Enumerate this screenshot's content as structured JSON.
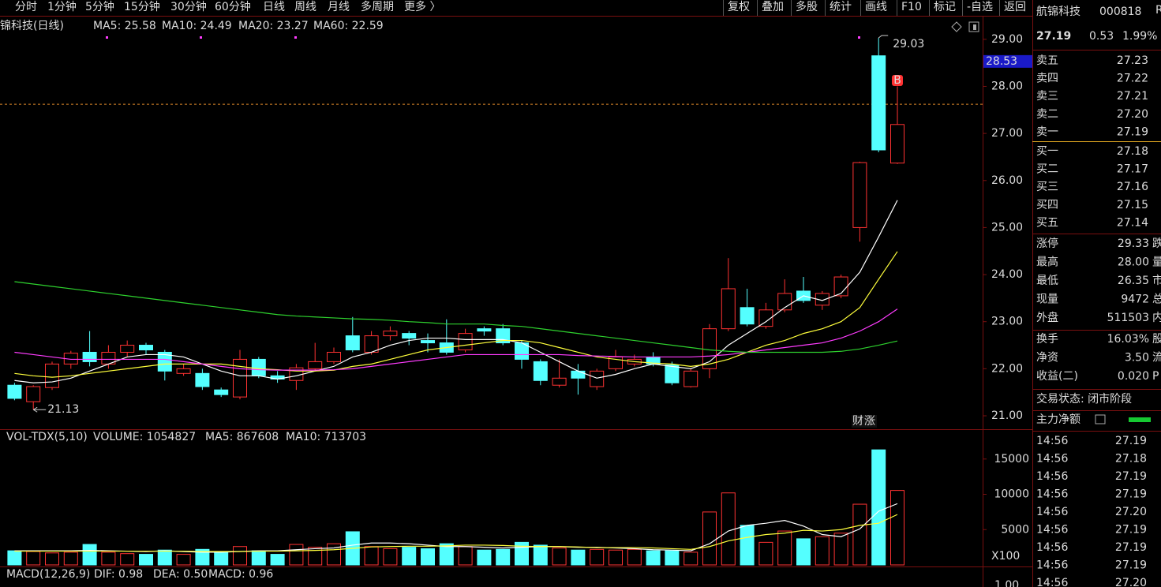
{
  "toolbar": {
    "periods": [
      "分时",
      "1分钟",
      "5分钟",
      "15分钟",
      "30分钟",
      "60分钟",
      "日线",
      "周线",
      "月线",
      "多周期",
      "更多 〉"
    ],
    "active": 6,
    "tools": [
      "复权",
      "叠加",
      "多股",
      "统计",
      "画线",
      "F10",
      "标记",
      "-自选",
      "返回"
    ]
  },
  "kline": {
    "type": "candlestick",
    "title": "锦科技(日线)",
    "legend": [
      "MA5: 25.58",
      "MA10: 24.49",
      "MA20: 23.27",
      "MA60: 22.59"
    ],
    "up_color": "#ff3232",
    "down_color": "#54ffff",
    "open": [
      21.65,
      21.3,
      21.6,
      22.1,
      22.35,
      22.1,
      22.35,
      22.5,
      22.35,
      21.9,
      21.9,
      21.55,
      21.4,
      22.2,
      21.85,
      21.75,
      22.0,
      22.15,
      22.7,
      22.35,
      22.7,
      22.75,
      22.6,
      22.55,
      22.4,
      22.85,
      22.85,
      22.55,
      22.15,
      21.65,
      21.95,
      21.62,
      22.0,
      22.1,
      22.25,
      22.08,
      21.62,
      22.0,
      22.85,
      23.3,
      22.9,
      23.25,
      23.65,
      23.35,
      23.55,
      25.0,
      28.65,
      26.37
    ],
    "close": [
      21.37,
      21.62,
      22.1,
      22.33,
      22.15,
      22.35,
      22.5,
      22.4,
      21.95,
      22.0,
      21.62,
      21.45,
      22.2,
      21.85,
      21.78,
      22.02,
      22.15,
      22.35,
      22.4,
      22.7,
      22.8,
      22.65,
      22.55,
      22.35,
      22.75,
      22.8,
      22.55,
      22.2,
      21.75,
      21.8,
      21.8,
      21.95,
      22.25,
      22.2,
      22.1,
      21.7,
      21.95,
      22.85,
      23.7,
      22.95,
      23.25,
      23.6,
      23.45,
      23.6,
      23.95,
      26.38,
      26.65,
      27.19
    ],
    "high": [
      21.7,
      21.65,
      22.15,
      22.38,
      22.8,
      22.5,
      22.6,
      22.55,
      22.4,
      22.1,
      22.0,
      21.6,
      22.4,
      22.25,
      21.95,
      22.1,
      22.55,
      22.45,
      23.1,
      22.8,
      22.9,
      22.8,
      22.75,
      23.05,
      22.85,
      22.9,
      22.95,
      22.6,
      22.2,
      22.2,
      22.1,
      22.0,
      22.4,
      22.3,
      22.35,
      22.15,
      22.0,
      22.95,
      24.35,
      23.7,
      23.4,
      23.9,
      23.95,
      23.65,
      24.0,
      26.4,
      29.03,
      28.0
    ],
    "low": [
      21.33,
      21.13,
      21.55,
      22.0,
      22.05,
      22.0,
      22.25,
      22.3,
      21.75,
      21.85,
      21.55,
      21.4,
      21.35,
      21.8,
      21.7,
      21.55,
      21.95,
      22.1,
      22.35,
      22.3,
      22.6,
      22.5,
      22.35,
      22.3,
      22.35,
      22.7,
      22.5,
      22.0,
      21.65,
      21.6,
      21.45,
      21.55,
      21.95,
      22.05,
      22.05,
      21.65,
      21.6,
      21.8,
      22.8,
      22.9,
      22.85,
      23.2,
      23.4,
      23.25,
      23.5,
      24.7,
      26.6,
      26.35
    ],
    "ma": [
      {
        "color": "#ffffff",
        "values": [
          21.75,
          21.7,
          21.72,
          21.8,
          21.95,
          22.1,
          22.25,
          22.3,
          22.3,
          22.25,
          22.1,
          21.95,
          21.85,
          21.85,
          21.78,
          21.85,
          21.95,
          22.05,
          22.25,
          22.35,
          22.5,
          22.6,
          22.65,
          22.65,
          22.62,
          22.62,
          22.62,
          22.55,
          22.35,
          22.15,
          21.95,
          21.8,
          21.88,
          22.0,
          22.1,
          22.05,
          22.0,
          22.15,
          22.5,
          22.75,
          23.0,
          23.3,
          23.55,
          23.45,
          23.6,
          24.05,
          24.8,
          25.58
        ]
      },
      {
        "color": "#ffff3c",
        "values": [
          21.9,
          21.85,
          21.82,
          21.85,
          21.9,
          21.95,
          22.0,
          22.05,
          22.1,
          22.1,
          22.1,
          22.1,
          22.05,
          22.0,
          21.98,
          21.95,
          21.95,
          21.97,
          22.05,
          22.1,
          22.2,
          22.3,
          22.4,
          22.45,
          22.5,
          22.55,
          22.6,
          22.6,
          22.55,
          22.45,
          22.35,
          22.25,
          22.2,
          22.15,
          22.12,
          22.1,
          22.05,
          22.1,
          22.2,
          22.35,
          22.5,
          22.6,
          22.75,
          22.85,
          23.0,
          23.3,
          23.9,
          24.49
        ]
      },
      {
        "color": "#ff3cff",
        "values": [
          22.35,
          22.3,
          22.25,
          22.2,
          22.2,
          22.2,
          22.2,
          22.2,
          22.2,
          22.15,
          22.1,
          22.05,
          22.0,
          21.98,
          21.97,
          21.97,
          21.97,
          21.98,
          22.0,
          22.05,
          22.1,
          22.15,
          22.2,
          22.25,
          22.3,
          22.3,
          22.3,
          22.3,
          22.3,
          22.3,
          22.28,
          22.27,
          22.26,
          22.25,
          22.25,
          22.25,
          22.25,
          22.27,
          22.3,
          22.35,
          22.4,
          22.45,
          22.5,
          22.55,
          22.65,
          22.8,
          23.0,
          23.27
        ]
      },
      {
        "color": "#2ed12e",
        "values": [
          23.85,
          23.8,
          23.75,
          23.7,
          23.65,
          23.6,
          23.55,
          23.5,
          23.45,
          23.4,
          23.35,
          23.3,
          23.25,
          23.2,
          23.15,
          23.12,
          23.1,
          23.08,
          23.06,
          23.05,
          23.03,
          23.0,
          22.98,
          22.95,
          22.95,
          22.95,
          22.92,
          22.9,
          22.85,
          22.8,
          22.75,
          22.7,
          22.65,
          22.6,
          22.55,
          22.5,
          22.45,
          22.4,
          22.37,
          22.35,
          22.35,
          22.35,
          22.35,
          22.35,
          22.37,
          22.42,
          22.5,
          22.59
        ]
      }
    ],
    "ylim": [
      20.715,
      29.5
    ],
    "yticks": [
      {
        "value": 29,
        "label": "29.00"
      },
      {
        "value": 28,
        "label": "28.00"
      },
      {
        "value": 27,
        "label": "27.00"
      },
      {
        "value": 26,
        "label": "26.00"
      },
      {
        "value": 25,
        "label": "25.00"
      },
      {
        "value": 24,
        "label": "24.00"
      },
      {
        "value": 23,
        "label": "23.00"
      },
      {
        "value": 22,
        "label": "22.00"
      },
      {
        "value": 21,
        "label": "21.00"
      }
    ],
    "high_label": "29.03",
    "low_label": "21.13",
    "cursor_price": {
      "value": 28.53,
      "label": "28.53"
    },
    "ref_line": 27.62,
    "markers": {
      "buy": "B",
      "news": [
        "财",
        "涨"
      ]
    }
  },
  "volume": {
    "type": "bar",
    "title": "VOL-TDX(5,10)",
    "legend": [
      {
        "text": "VOLUME: 1054827",
        "color": "#ffffff"
      },
      {
        "text": "MA5: 867608",
        "color": "#ffffff"
      },
      {
        "text": "MA10: 713703",
        "color": "#ffff3c"
      }
    ],
    "values": [
      2000,
      1900,
      1700,
      1800,
      2900,
      1800,
      1600,
      1500,
      2100,
      1500,
      2200,
      1800,
      2600,
      2000,
      1500,
      2900,
      2500,
      3000,
      4700,
      2600,
      2300,
      2500,
      2300,
      3000,
      2600,
      2100,
      2200,
      3200,
      2800,
      2400,
      2100,
      2200,
      2100,
      2200,
      2000,
      2000,
      1800,
      7500,
      10200,
      5600,
      3200,
      4800,
      3700,
      4000,
      4500,
      8600,
      16300,
      10548
    ],
    "ma": [
      {
        "color": "#ffffff",
        "values": [
          2000,
          2000,
          2000,
          2000,
          2050,
          2000,
          1950,
          1900,
          2000,
          1900,
          1800,
          1800,
          1900,
          2000,
          2000,
          2150,
          2300,
          2400,
          2800,
          3100,
          3100,
          3000,
          2800,
          2600,
          2600,
          2500,
          2400,
          2500,
          2600,
          2600,
          2500,
          2500,
          2400,
          2300,
          2150,
          2100,
          2000,
          3000,
          4800,
          5600,
          5900,
          6300,
          5500,
          4300,
          4000,
          5100,
          7600,
          8676
        ]
      },
      {
        "color": "#ffff3c",
        "values": [
          1950,
          1950,
          1950,
          1950,
          1950,
          1950,
          1950,
          1950,
          1950,
          1950,
          1900,
          1900,
          1900,
          1950,
          1950,
          2000,
          2050,
          2150,
          2350,
          2550,
          2600,
          2650,
          2650,
          2700,
          2800,
          2800,
          2750,
          2650,
          2600,
          2600,
          2550,
          2450,
          2450,
          2450,
          2400,
          2300,
          2200,
          2600,
          3400,
          3900,
          4300,
          4500,
          4900,
          4800,
          5000,
          5600,
          5900,
          7137
        ]
      }
    ],
    "ylim": [
      0,
      19000
    ],
    "yticks": [
      5000,
      10000,
      15000
    ],
    "unit": "X100"
  },
  "macd": {
    "legend": [
      {
        "text": "MACD(12,26,9)",
        "color": "#dddddd"
      },
      {
        "text": "DIF: 0.98",
        "color": "#ffffff"
      },
      {
        "text": "DEA: 0.50",
        "color": "#ffff3c"
      },
      {
        "text": "MACD: 0.96",
        "color": "#ff3cff"
      }
    ],
    "ytick": "1.00"
  },
  "quote": {
    "name": "航锦科技",
    "code": "000818",
    "flag": "R",
    "price": "27.19",
    "change": "0.53",
    "pct": "1.99%"
  },
  "orderbook": {
    "sell": [
      {
        "label": "卖五",
        "price": "27.23"
      },
      {
        "label": "卖四",
        "price": "27.22"
      },
      {
        "label": "卖三",
        "price": "27.21"
      },
      {
        "label": "卖二",
        "price": "27.20"
      },
      {
        "label": "卖一",
        "price": "27.19"
      }
    ],
    "buy": [
      {
        "label": "买一",
        "price": "27.18"
      },
      {
        "label": "买二",
        "price": "27.17"
      },
      {
        "label": "买三",
        "price": "27.16"
      },
      {
        "label": "买四",
        "price": "27.15"
      },
      {
        "label": "买五",
        "price": "27.14"
      }
    ]
  },
  "stats": [
    [
      {
        "label": "涨停",
        "value": "29.33",
        "color": "#ff3232",
        "tail": "跌"
      },
      {
        "label": "最高",
        "value": "28.00",
        "color": "#ff3232",
        "tail": "量"
      },
      {
        "label": "最低",
        "value": "26.35",
        "color": "#2ed12e",
        "tail": "市"
      },
      {
        "label": "现量",
        "value": "9472",
        "color": "#ff3cff",
        "tail": "总"
      },
      {
        "label": "外盘",
        "value": "511503",
        "color": "#ff3232",
        "tail": "内"
      }
    ],
    [
      {
        "label": "换手",
        "value": "16.03%",
        "color": "#dddddd",
        "tail": "股"
      },
      {
        "label": "净资",
        "value": "3.50",
        "color": "#dddddd",
        "tail": "流"
      },
      {
        "label": "收益(二)",
        "value": "0.020",
        "color": "#dddddd",
        "tail": "P"
      }
    ]
  ],
  "status": "交易状态: 闭市阶段",
  "main_flow": "主力净额",
  "ticks": [
    [
      "14:56",
      "27.19"
    ],
    [
      "14:56",
      "27.18"
    ],
    [
      "14:56",
      "27.19"
    ],
    [
      "14:56",
      "27.19"
    ],
    [
      "14:56",
      "27.20"
    ],
    [
      "14:56",
      "27.19"
    ],
    [
      "14:56",
      "27.19"
    ],
    [
      "14:56",
      "27.19"
    ],
    [
      "14:56",
      "27.20"
    ]
  ]
}
